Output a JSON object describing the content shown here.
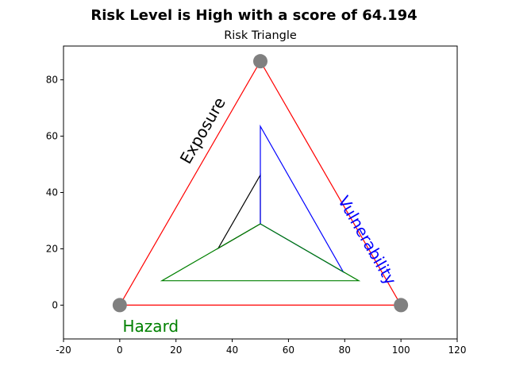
{
  "chart_data": {
    "type": "line",
    "suptitle": "Risk Level is High with a score of 64.194",
    "title": "Risk Triangle",
    "xlim": [
      -20,
      120
    ],
    "ylim": [
      -12,
      92
    ],
    "xticks": [
      -20,
      0,
      20,
      40,
      60,
      80,
      100,
      120
    ],
    "yticks": [
      0,
      20,
      40,
      60,
      80
    ],
    "grid": false,
    "outer_triangle": {
      "color": "#ff0000",
      "points": [
        [
          0,
          0
        ],
        [
          50,
          86.6
        ],
        [
          100,
          0
        ]
      ]
    },
    "vertex_markers": {
      "color": "#808080",
      "points": [
        [
          0,
          0
        ],
        [
          50,
          86.6
        ],
        [
          100,
          0
        ]
      ]
    },
    "series": [
      {
        "color": "#000000",
        "points": [
          [
            50,
            28.87
          ],
          [
            50,
            46.2
          ],
          [
            35,
            20.2
          ],
          [
            50,
            28.87
          ]
        ]
      },
      {
        "color": "#0000ff",
        "points": [
          [
            50,
            28.87
          ],
          [
            50,
            63.5
          ],
          [
            79.5,
            11.8
          ],
          [
            50,
            28.87
          ]
        ]
      },
      {
        "color": "#008000",
        "points": [
          [
            50,
            28.87
          ],
          [
            15,
            8.66
          ],
          [
            85,
            8.66
          ],
          [
            50,
            28.87
          ]
        ]
      }
    ],
    "side_labels": [
      {
        "text": "Exposure",
        "color": "#000000",
        "x": 29.5,
        "y": 62,
        "rotation": -60
      },
      {
        "text": "Vulnerability",
        "color": "#0000ff",
        "x": 88,
        "y": 23,
        "rotation": 60
      },
      {
        "text": "Hazard",
        "color": "#008000",
        "x": 11,
        "y": -7.5,
        "rotation": 0
      }
    ]
  }
}
